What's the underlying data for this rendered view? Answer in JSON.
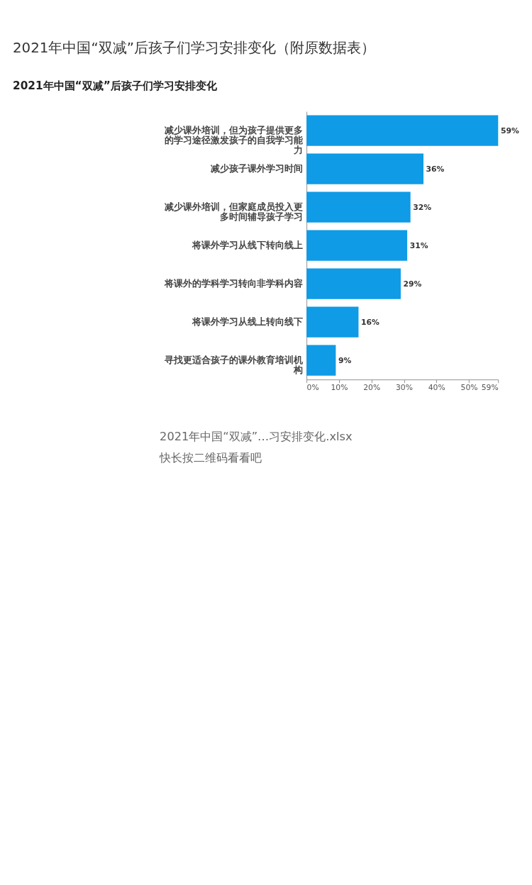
{
  "chart_data": {
    "type": "bar",
    "orientation": "horizontal",
    "title": "2021年中国“双减”后孩子们学习安排变化（附原数据表）",
    "subtitle": "2021年中国“双减”后孩子们学习安排变化",
    "categories": [
      "减少课外培训，但为孩子提供更多的学习途径激发孩子的自我学习能力",
      "减少孩子课外学习时间",
      "减少课外培训，但家庭成员投入更多时间辅导孩子学习",
      "将课外学习从线下转向线上",
      "将课外的学科学习转向非学科内容",
      "将课外学习从线上转向线下",
      "寻找更适合孩子的课外教育培训机构"
    ],
    "values": [
      59,
      36,
      32,
      31,
      29,
      16,
      9
    ],
    "value_labels": [
      "59%",
      "36%",
      "32%",
      "31%",
      "29%",
      "16%",
      "9%"
    ],
    "color": "#0f9be6",
    "xlim": [
      0,
      59
    ],
    "xticks": [
      {
        "value": 0,
        "label": "0%"
      },
      {
        "value": 10,
        "label": "10%"
      },
      {
        "value": 20,
        "label": "20%"
      },
      {
        "value": 30,
        "label": "30%"
      },
      {
        "value": 40,
        "label": "40%"
      },
      {
        "value": 50,
        "label": "50%"
      },
      {
        "value": 59,
        "label": "59%"
      }
    ],
    "grid": false,
    "annotations": [
      "2021年中国“双减”…习安排变化.xlsx",
      "快长按二维码看看吧"
    ]
  }
}
